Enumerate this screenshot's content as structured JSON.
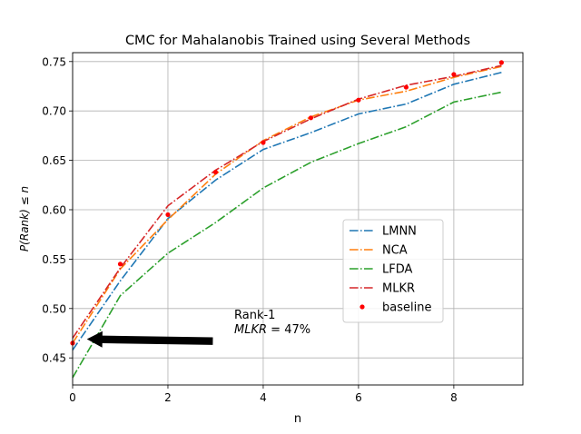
{
  "chart_data": {
    "type": "line",
    "title": "CMC for Mahalanobis Trained using Several Methods",
    "xlabel": "n",
    "ylabel": "P(Rank) ≤ n",
    "xlim": [
      0,
      9.45
    ],
    "ylim": [
      0.4226,
      0.759
    ],
    "xticks": [
      0,
      2,
      4,
      6,
      8
    ],
    "xtick_labels": [
      "0",
      "2",
      "4",
      "6",
      "8"
    ],
    "yticks": [
      0.45,
      0.5,
      0.55,
      0.6,
      0.65,
      0.7,
      0.75
    ],
    "ytick_labels": [
      "0.45",
      "0.50",
      "0.55",
      "0.60",
      "0.65",
      "0.70",
      "0.75"
    ],
    "grid": true,
    "legend_position": "center-right",
    "x": [
      0,
      1,
      2,
      3,
      4,
      5,
      6,
      7,
      8,
      9
    ],
    "series": [
      {
        "name": "LMNN",
        "color": "#1f77b4",
        "style": "dashdot",
        "values": [
          0.458,
          0.528,
          0.591,
          0.63,
          0.661,
          0.678,
          0.697,
          0.707,
          0.727,
          0.739
        ]
      },
      {
        "name": "NCA",
        "color": "#ff7f0e",
        "style": "dashdot",
        "values": [
          0.465,
          0.54,
          0.59,
          0.636,
          0.67,
          0.694,
          0.711,
          0.72,
          0.734,
          0.745
        ]
      },
      {
        "name": "LFDA",
        "color": "#2ca02c",
        "style": "dashdot",
        "values": [
          0.43,
          0.513,
          0.556,
          0.587,
          0.622,
          0.648,
          0.667,
          0.684,
          0.709,
          0.719
        ]
      },
      {
        "name": "MLKR",
        "color": "#d62728",
        "style": "dashdot",
        "values": [
          0.47,
          0.541,
          0.604,
          0.64,
          0.669,
          0.692,
          0.712,
          0.726,
          0.735,
          0.746
        ]
      },
      {
        "name": "baseline",
        "color": "#ff0000",
        "style": "markers",
        "values": [
          0.465,
          0.545,
          0.595,
          0.638,
          0.668,
          0.693,
          0.711,
          0.724,
          0.737,
          0.749
        ]
      }
    ],
    "annotation": {
      "line1": "Rank-1",
      "line2_italic": "MLKR",
      "line2_rest": " = 47%",
      "arrow_from": [
        3,
        0.467
      ],
      "arrow_to": [
        0.3,
        0.469
      ]
    }
  }
}
